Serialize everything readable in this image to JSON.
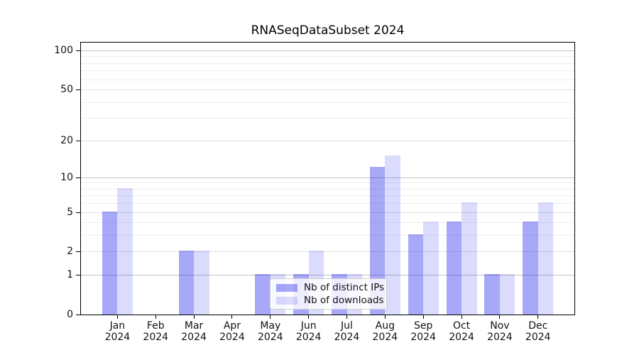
{
  "title": "RNASeqDataSubset 2024",
  "chart_data": {
    "type": "bar",
    "title": "RNASeqDataSubset 2024",
    "categories": [
      "Jan 2024",
      "Feb 2024",
      "Mar 2024",
      "Apr 2024",
      "May 2024",
      "Jun 2024",
      "Jul 2024",
      "Aug 2024",
      "Sep 2024",
      "Oct 2024",
      "Nov 2024",
      "Dec 2024"
    ],
    "series": [
      {
        "name": "Nb of distinct IPs",
        "values": [
          5,
          0,
          2,
          0,
          1,
          1,
          1,
          12,
          3,
          4,
          1,
          4
        ],
        "color": "rgba(0,0,238,0.34)"
      },
      {
        "name": "Nb of downloads",
        "values": [
          8,
          0,
          2,
          0,
          1,
          2,
          1,
          15,
          4,
          6,
          1,
          6
        ],
        "color": "rgba(0,0,238,0.14)"
      }
    ],
    "xlabel": "",
    "ylabel": "",
    "yscale": "log1p",
    "ylim": [
      0,
      118
    ],
    "yticks": [
      0,
      1,
      2,
      5,
      10,
      20,
      50,
      100
    ],
    "minor_gridlines": [
      3,
      4,
      6,
      7,
      8,
      9,
      30,
      40,
      60,
      70,
      80,
      90
    ],
    "grid": true,
    "legend_position": "inside-bottom-center"
  },
  "colors": {
    "bar_distinct_ips": "rgba(0,0,238,0.34)",
    "bar_downloads": "rgba(0,0,238,0.14)",
    "grid_pow10": "#c3c3c3",
    "grid_major": "#e2e2e2",
    "grid_minor": "#efefef",
    "spine": "#000000",
    "text": "#111111",
    "legend_border": "#d0d0d0",
    "background": "#ffffff"
  }
}
